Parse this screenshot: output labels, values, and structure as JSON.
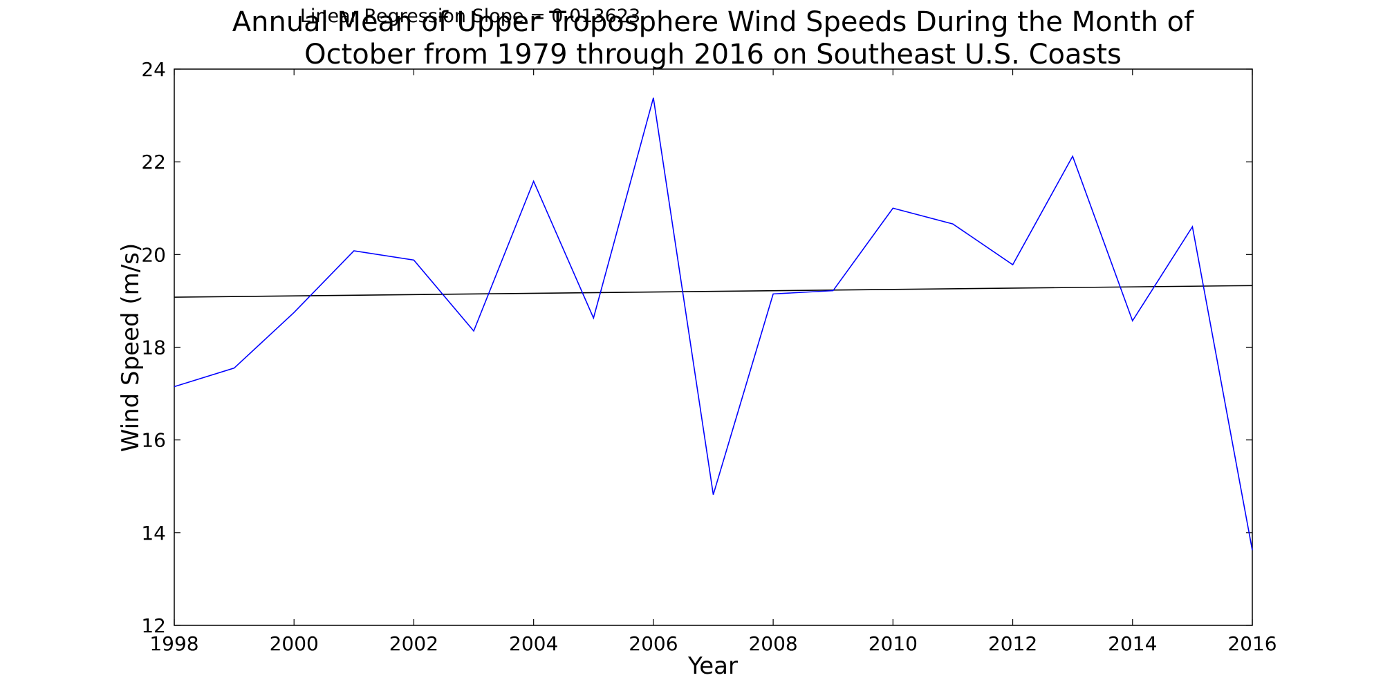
{
  "chart_data": {
    "type": "line",
    "title_lines": [
      "Annual Mean of Upper Troposphere Wind Speeds During the Month of",
      "October from 1979 through 2016 on Southeast U.S. Coasts"
    ],
    "annotation": "Linear Regression Slope = 0.013623",
    "xlabel": "Year",
    "ylabel": "Wind Speed (m/s)",
    "xlim": [
      1998,
      2016
    ],
    "ylim": [
      12,
      24
    ],
    "x_ticks": [
      1998,
      2000,
      2002,
      2004,
      2006,
      2008,
      2010,
      2012,
      2014,
      2016
    ],
    "y_ticks": [
      12,
      14,
      16,
      18,
      20,
      22,
      24
    ],
    "grid": false,
    "series": [
      {
        "color": "#0000ff",
        "x": [
          1998,
          1999,
          2000,
          2001,
          2002,
          2003,
          2004,
          2005,
          2006,
          2007,
          2008,
          2009,
          2010,
          2011,
          2012,
          2013,
          2014,
          2015,
          2016
        ],
        "y": [
          17.15,
          17.55,
          18.75,
          20.08,
          19.88,
          18.35,
          21.58,
          18.63,
          23.38,
          14.82,
          19.15,
          19.22,
          21.0,
          20.66,
          19.78,
          22.12,
          18.57,
          20.6,
          13.62
        ]
      }
    ],
    "trendline": {
      "color": "#000000",
      "x": [
        1998,
        2016
      ],
      "y": [
        19.08,
        19.33
      ]
    }
  }
}
